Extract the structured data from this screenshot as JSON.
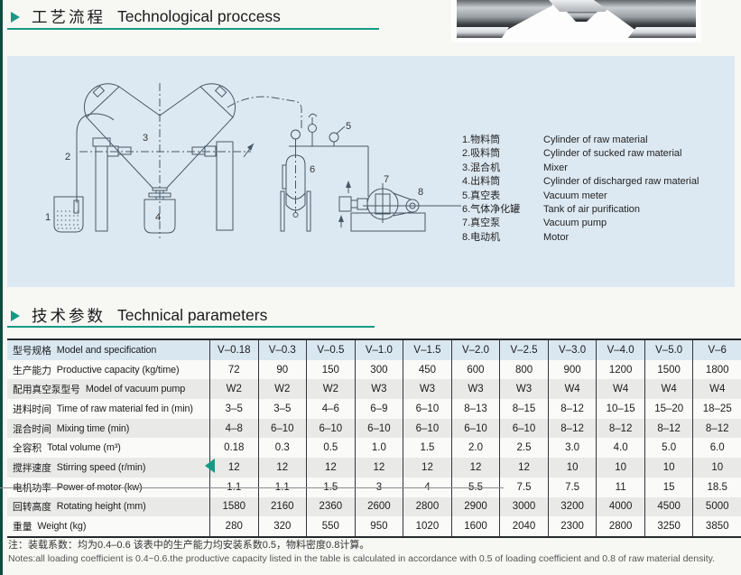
{
  "accent_color": "#169a84",
  "panel_color": "#dde9f2",
  "section1": {
    "title_zh": "工艺流程",
    "title_en": "Technological proccess"
  },
  "section2": {
    "title_zh": "技术参数",
    "title_en": "Technical parameters"
  },
  "diagram": {
    "part_numbers": [
      "1",
      "2",
      "3",
      "4",
      "5",
      "6",
      "7",
      "8"
    ],
    "legend": [
      {
        "zh": "1.物料筒",
        "en": "Cylinder of raw material"
      },
      {
        "zh": "2.吸料筒",
        "en": "Cylinder of sucked raw material"
      },
      {
        "zh": "3.混合机",
        "en": "Mixer"
      },
      {
        "zh": "4.出料筒",
        "en": "Cylinder of discharged raw material"
      },
      {
        "zh": "5.真空表",
        "en": "Vacuum meter"
      },
      {
        "zh": "6.气体净化罐",
        "en": "Tank of air purification"
      },
      {
        "zh": "7.真空泵",
        "en": "Vacuum pump"
      },
      {
        "zh": "8.电动机",
        "en": "Motor"
      }
    ]
  },
  "table": {
    "spec_label_zh": "型号规格",
    "spec_label_en": "Model and specification",
    "models": [
      "V–0.18",
      "V–0.3",
      "V–0.5",
      "V–1.0",
      "V–1.5",
      "V–2.0",
      "V–2.5",
      "V–3.0",
      "V–4.0",
      "V–5.0",
      "V–6"
    ],
    "rows": [
      {
        "zh": "生产能力",
        "en": "Productive capacity (kg/time)",
        "values": [
          "72",
          "90",
          "150",
          "300",
          "450",
          "600",
          "800",
          "900",
          "1200",
          "1500",
          "1800"
        ]
      },
      {
        "zh": "配用真空泵型号",
        "en": "Model of vacuum pump",
        "values": [
          "W2",
          "W2",
          "W2",
          "W3",
          "W3",
          "W3",
          "W3",
          "W4",
          "W4",
          "W4",
          "W4"
        ]
      },
      {
        "zh": "进料时间",
        "en": "Time of raw material fed in (min)",
        "values": [
          "3–5",
          "3–5",
          "4–6",
          "6–9",
          "6–10",
          "8–13",
          "8–15",
          "8–12",
          "10–15",
          "15–20",
          "18–25"
        ]
      },
      {
        "zh": "混合时间",
        "en": "Mixing  time  (min)",
        "values": [
          "4–8",
          "6–10",
          "6–10",
          "6–10",
          "6–10",
          "6–10",
          "6–10",
          "8–12",
          "8–12",
          "8–12",
          "8–12"
        ]
      },
      {
        "zh": "全容积",
        "en": "Total volume  (m³)",
        "values": [
          "0.18",
          "0.3",
          "0.5",
          "1.0",
          "1.5",
          "2.0",
          "2.5",
          "3.0",
          "4.0",
          "5.0",
          "6.0"
        ]
      },
      {
        "zh": "搅拌速度",
        "en": "Stirring speed   (r/min)",
        "values": [
          "12",
          "12",
          "12",
          "12",
          "12",
          "12",
          "12",
          "10",
          "10",
          "10",
          "10"
        ]
      },
      {
        "zh": "电机功率",
        "en": "Power of motor (kw)",
        "values": [
          "1.1",
          "1.1",
          "1.5",
          "3",
          "4",
          "5.5",
          "7.5",
          "7.5",
          "11",
          "15",
          "18.5"
        ]
      },
      {
        "zh": "回转高度",
        "en": "Rotating height (mm)",
        "values": [
          "1580",
          "2160",
          "2360",
          "2600",
          "2800",
          "2900",
          "3000",
          "3200",
          "4000",
          "4500",
          "5000"
        ]
      },
      {
        "zh": "重量",
        "en": "Weight (kg)",
        "values": [
          "280",
          "320",
          "550",
          "950",
          "1020",
          "1600",
          "2040",
          "2300",
          "2800",
          "3250",
          "3850"
        ]
      }
    ]
  },
  "notes": {
    "zh": "注：装载系数：均为0.4–0.6 该表中的生产能力均安装系数0.5，物料密度0.8计算。",
    "en": "Notes:all loading coefficient is 0.4~0.6.the productive capacity listed in the table is calculated in accordance with 0.5 of loading coefficient and 0.8 of raw material density."
  }
}
